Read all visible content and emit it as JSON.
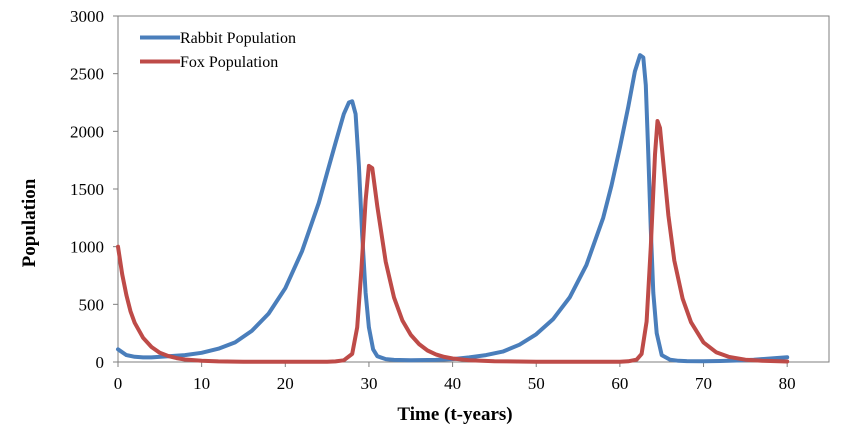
{
  "chart_data": {
    "type": "line",
    "title": "",
    "xlabel": "Time (t-years)",
    "ylabel": "Population",
    "xlim": [
      0,
      85
    ],
    "ylim": [
      0,
      3000
    ],
    "xticks": [
      0,
      10,
      20,
      30,
      40,
      50,
      60,
      70,
      80
    ],
    "yticks": [
      0,
      500,
      1000,
      1500,
      2000,
      2500,
      3000
    ],
    "grid": false,
    "legend_position": "top-left",
    "series": [
      {
        "name": "Rabbit Population",
        "color": "#4a7ebb",
        "x": [
          0,
          1,
          2,
          3,
          4,
          6,
          8,
          10,
          12,
          14,
          16,
          18,
          20,
          22,
          24,
          25,
          26,
          27,
          27.6,
          28,
          28.4,
          28.8,
          29.2,
          29.6,
          30,
          30.5,
          31,
          32,
          33,
          35,
          38,
          40,
          42,
          44,
          46,
          48,
          50,
          52,
          54,
          56,
          58,
          59,
          60,
          61,
          61.8,
          62.4,
          62.8,
          63.1,
          63.4,
          63.7,
          64,
          64.4,
          65,
          66,
          67,
          68,
          70,
          72,
          74,
          76,
          78,
          80
        ],
        "values": [
          110,
          60,
          45,
          40,
          40,
          50,
          60,
          80,
          115,
          170,
          270,
          420,
          640,
          960,
          1380,
          1640,
          1900,
          2150,
          2250,
          2260,
          2150,
          1700,
          1100,
          600,
          300,
          110,
          50,
          25,
          18,
          15,
          18,
          25,
          40,
          60,
          90,
          150,
          240,
          370,
          560,
          840,
          1250,
          1530,
          1860,
          2210,
          2520,
          2660,
          2640,
          2400,
          1800,
          1150,
          600,
          250,
          60,
          20,
          10,
          8,
          7,
          9,
          13,
          20,
          30,
          42
        ]
      },
      {
        "name": "Fox Population",
        "color": "#be4b48",
        "x": [
          0,
          0.5,
          1,
          1.5,
          2,
          3,
          4,
          5,
          6,
          7,
          8,
          10,
          12,
          15,
          20,
          25,
          26,
          27,
          28,
          28.6,
          29.1,
          29.6,
          30,
          30.4,
          31,
          32,
          33,
          34,
          35,
          36,
          37,
          38,
          39,
          40,
          42,
          45,
          50,
          55,
          60,
          61,
          62,
          62.6,
          63.2,
          63.7,
          64.2,
          64.5,
          64.8,
          65.2,
          65.8,
          66.5,
          67.5,
          68.5,
          70,
          71.5,
          73,
          75,
          77,
          80
        ],
        "values": [
          1000,
          760,
          580,
          440,
          340,
          210,
          130,
          80,
          52,
          34,
          22,
          10,
          5,
          3,
          2,
          3,
          5,
          15,
          70,
          300,
          800,
          1400,
          1700,
          1680,
          1350,
          870,
          560,
          360,
          235,
          155,
          100,
          66,
          44,
          30,
          15,
          7,
          3,
          2,
          3,
          6,
          20,
          70,
          350,
          1000,
          1800,
          2090,
          2030,
          1720,
          1270,
          880,
          550,
          345,
          170,
          85,
          45,
          20,
          10,
          4
        ]
      }
    ]
  }
}
